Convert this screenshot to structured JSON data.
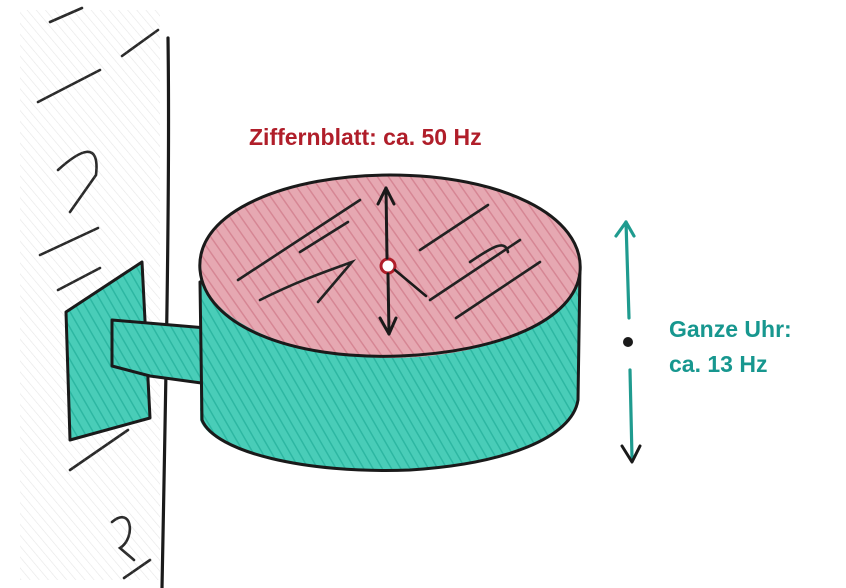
{
  "labels": {
    "dial_frequency": "Ziffernblatt: ca. 50 Hz",
    "whole_clock_line1": "Ganze Uhr:",
    "whole_clock_line2": "ca. 13 Hz"
  },
  "colors": {
    "dial_label": "#b01e2a",
    "whole_clock_label": "#17978f",
    "dial_face": "#d98a98",
    "clock_body": "#2cc4ad",
    "ink": "#1a1a1a",
    "arrow_teal": "#1f9b8f"
  }
}
